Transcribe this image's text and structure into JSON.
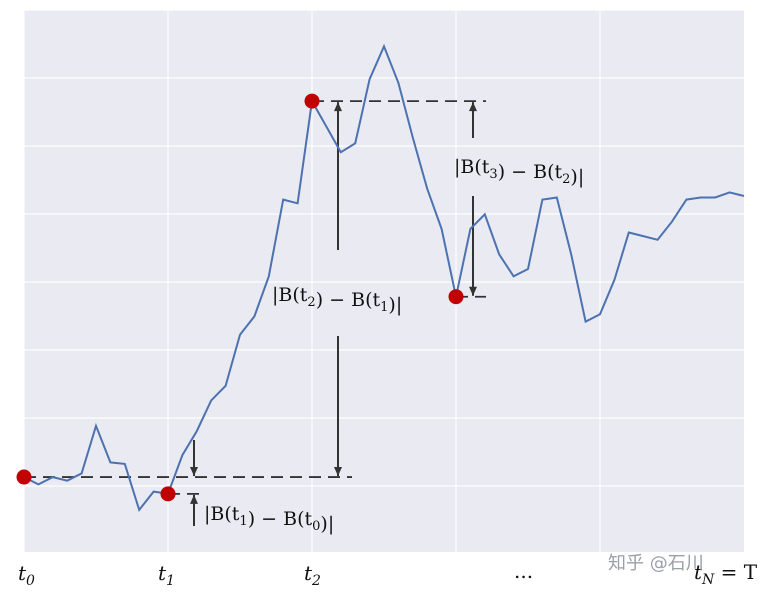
{
  "chart_data": {
    "type": "line",
    "title": "",
    "xlabel": "",
    "ylabel": "",
    "grid": true,
    "background": "#eaeaf2",
    "line_color": "#4c72b0",
    "point_color": "#c00000",
    "x_ticks": [
      {
        "id": "t0",
        "base": "t",
        "sub": "0"
      },
      {
        "id": "t1",
        "base": "t",
        "sub": "1"
      },
      {
        "id": "t2",
        "base": "t",
        "sub": "2"
      },
      {
        "id": "dots",
        "text": "..."
      },
      {
        "id": "tN",
        "base": "t",
        "sub": "N",
        "rest": " = T"
      }
    ],
    "x": [
      0,
      0.1,
      0.2,
      0.3,
      0.4,
      0.5,
      0.6,
      0.7,
      0.8,
      0.9,
      1.0,
      1.1,
      1.2,
      1.3,
      1.4,
      1.5,
      1.6,
      1.7,
      1.8,
      1.9,
      2.0,
      2.1,
      2.2,
      2.3,
      2.4,
      2.5,
      2.6,
      2.7,
      2.8,
      2.9,
      3.0,
      3.1,
      3.2,
      3.3,
      3.4,
      3.5,
      3.6,
      3.7,
      3.8,
      3.9,
      4.0,
      4.1,
      4.2,
      4.3,
      4.4,
      4.5,
      4.6,
      4.7,
      4.8,
      4.9,
      5.0
    ],
    "y": [
      0.15,
      0.05,
      0.15,
      0.1,
      0.2,
      0.85,
      0.35,
      0.33,
      -0.3,
      -0.05,
      -0.08,
      0.45,
      0.78,
      1.2,
      1.4,
      2.1,
      2.35,
      2.9,
      3.95,
      3.9,
      5.3,
      4.95,
      4.6,
      4.72,
      5.6,
      6.05,
      5.55,
      4.8,
      4.1,
      3.55,
      2.62,
      3.55,
      3.75,
      3.2,
      2.9,
      3.0,
      3.95,
      3.98,
      3.2,
      2.28,
      2.38,
      2.85,
      3.5,
      3.45,
      3.4,
      3.65,
      3.95,
      3.98,
      3.98,
      4.05,
      4.0
    ],
    "marked_points": [
      {
        "x": 0,
        "y": 0.15
      },
      {
        "x": 1.0,
        "y": -0.08
      },
      {
        "x": 2.0,
        "y": 5.3
      },
      {
        "x": 3.0,
        "y": 2.62
      }
    ],
    "annotations": [
      {
        "id": "d1",
        "label": "|B(t1) − B(t0)|",
        "parts": [
          {
            "t": "|B(t"
          },
          {
            "s": "1"
          },
          {
            "t": ") − B(t"
          },
          {
            "s": "0"
          },
          {
            "t": ")|"
          }
        ]
      },
      {
        "id": "d2",
        "label": "|B(t2) − B(t1)|",
        "parts": [
          {
            "t": "|B(t"
          },
          {
            "s": "2"
          },
          {
            "t": ") − B(t"
          },
          {
            "s": "1"
          },
          {
            "t": ")|"
          }
        ]
      },
      {
        "id": "d3",
        "label": "|B(t3) − B(t2)|",
        "parts": [
          {
            "t": "|B(t"
          },
          {
            "s": "3"
          },
          {
            "t": ") − B(t"
          },
          {
            "s": "2"
          },
          {
            "t": ")|"
          }
        ]
      }
    ],
    "watermark": "知乎 @石川"
  }
}
